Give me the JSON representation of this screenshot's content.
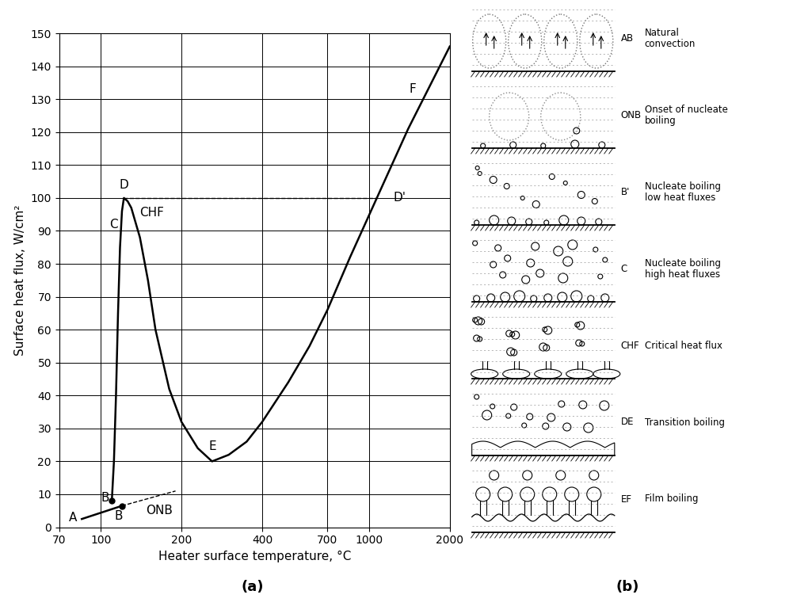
{
  "chart_data": {
    "type": "line",
    "caption": "(a)",
    "x_label": "Heater surface temperature, °C",
    "y_label": "Surface heat flux, W/cm²",
    "log": "x",
    "grid": true,
    "xlim": [
      70,
      2000
    ],
    "ylim": [
      0,
      150
    ],
    "xticks": [
      70,
      100,
      200,
      400,
      700,
      1000,
      2000
    ],
    "yticks": [
      0,
      10,
      20,
      30,
      40,
      50,
      60,
      70,
      80,
      90,
      100,
      110,
      120,
      130,
      140,
      150
    ],
    "series": [
      {
        "color": "#000000",
        "line_style": "solid",
        "x": [
          110,
          112,
          114,
          116,
          118,
          120,
          122,
          126,
          130,
          140,
          150,
          160,
          180,
          200,
          230,
          260,
          300,
          350,
          400,
          500,
          600,
          700,
          850,
          1070,
          1400,
          2000
        ],
        "values": [
          8,
          20,
          40,
          65,
          85,
          96,
          100,
          99,
          97,
          88,
          75,
          60,
          42,
          32,
          24,
          20,
          22,
          26,
          32,
          44,
          55,
          66,
          82,
          100,
          121,
          146
        ]
      },
      {
        "color": "#000000",
        "line_style": "solid",
        "x": [
          85,
          120
        ],
        "values": [
          2.5,
          6.5
        ]
      },
      {
        "color": "#000000",
        "line_style": "dashed",
        "x": [
          120,
          190
        ],
        "values": [
          6.5,
          11
        ]
      },
      {
        "color": "#000000",
        "line_style": "dashed",
        "x": [
          122,
          1070
        ],
        "values": [
          100,
          100
        ]
      },
      {
        "color": "#000000",
        "line_style": "none",
        "marker": "circle",
        "x": [
          110,
          120
        ],
        "values": [
          8,
          6.5
        ]
      }
    ],
    "annotations": [
      {
        "text": "A",
        "x": 79,
        "y": 3
      },
      {
        "text": "B",
        "x": 104,
        "y": 9
      },
      {
        "text": "B",
        "x": 117,
        "y": 3.5
      },
      {
        "text": "ONB",
        "x": 165,
        "y": 5
      },
      {
        "text": "C",
        "x": 112,
        "y": 92
      },
      {
        "text": "D",
        "x": 122,
        "y": 104
      },
      {
        "text": "CHF",
        "x": 155,
        "y": 95.5
      },
      {
        "text": "E",
        "x": 262,
        "y": 24.5
      },
      {
        "text": "F",
        "x": 1450,
        "y": 133
      },
      {
        "text": "D'",
        "x": 1300,
        "y": 100
      }
    ]
  },
  "diagram": {
    "caption": "(b)",
    "stages": [
      {
        "code": "AB",
        "text": "Natural\nconvection"
      },
      {
        "code": "ONB",
        "text": "Onset of nucleate\nboiling"
      },
      {
        "code": "B'",
        "text": "Nucleate boiling\nlow heat fluxes"
      },
      {
        "code": "C",
        "text": "Nucleate boiling\nhigh heat fluxes"
      },
      {
        "code": "CHF",
        "text": "Critical heat flux"
      },
      {
        "code": "DE",
        "text": "Transition boiling"
      },
      {
        "code": "EF",
        "text": "Film boiling"
      }
    ]
  }
}
